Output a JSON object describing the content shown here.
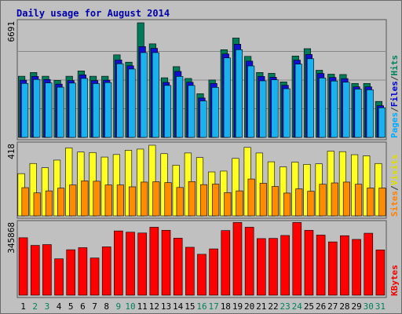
{
  "chart_data": {
    "type": "bar",
    "title": "Daily usage for August 2014",
    "days": [
      "1",
      "2",
      "3",
      "4",
      "5",
      "6",
      "7",
      "8",
      "9",
      "10",
      "11",
      "12",
      "13",
      "14",
      "15",
      "16",
      "17",
      "18",
      "19",
      "20",
      "21",
      "22",
      "23",
      "24",
      "25",
      "26",
      "27",
      "28",
      "29",
      "30",
      "31"
    ],
    "weekend_days": [
      "2",
      "3",
      "9",
      "10",
      "16",
      "17",
      "23",
      "24",
      "30",
      "31"
    ],
    "panels": [
      {
        "id": "hits",
        "max_label": "6691",
        "ymax": 6691,
        "right_labels": [
          {
            "text": "Pages",
            "color": "#00aaff"
          },
          {
            "text": "/",
            "color": "#333333"
          },
          {
            "text": "Files",
            "color": "#0000cc"
          },
          {
            "text": "/",
            "color": "#333333"
          },
          {
            "text": "Hits",
            "color": "#00805c"
          }
        ],
        "series": [
          {
            "name": "Hits",
            "color": "#007b5a",
            "values": [
              3570,
              3790,
              3570,
              3330,
              3570,
              3880,
              3570,
              3570,
              4820,
              4390,
              6691,
              5460,
              3480,
              4130,
              3440,
              2550,
              3350,
              5120,
              5800,
              4730,
              3790,
              3740,
              3240,
              4750,
              5180,
              3920,
              3690,
              3670,
              3150,
              3150,
              2100
            ]
          },
          {
            "name": "Files",
            "color": "#1010d0",
            "values": [
              3340,
              3560,
              3380,
              3110,
              3320,
              3650,
              3320,
              3340,
              4520,
              4180,
              5300,
              5200,
              3210,
              3850,
              3220,
              2300,
              3150,
              4870,
              5440,
              4450,
              3560,
              3510,
              3040,
              4510,
              4840,
              3730,
              3500,
              3430,
              2950,
              2950,
              1850
            ]
          },
          {
            "name": "Pages",
            "color": "#19b2ee",
            "values": [
              3150,
              3380,
              3180,
              2930,
              3170,
              3440,
              3140,
              3200,
              4300,
              3990,
              4950,
              4950,
              3030,
              3560,
              3030,
              2130,
              2920,
              4640,
              5120,
              4170,
              3300,
              3360,
              2840,
              4280,
              4590,
              3470,
              3290,
              3220,
              2820,
              2780,
              1730
            ]
          }
        ]
      },
      {
        "id": "visits",
        "max_label": "418",
        "ymax": 418,
        "right_labels": [
          {
            "text": "Sites",
            "color": "#ff8000"
          },
          {
            "text": "/",
            "color": "#333333"
          },
          {
            "text": "Visits",
            "color": "#dddd00"
          }
        ],
        "series": [
          {
            "name": "Visits",
            "color": "#ffff22",
            "values": [
              250,
              310,
              285,
              330,
              402,
              378,
              375,
              348,
              363,
              388,
              395,
              418,
              368,
              300,
              372,
              345,
              260,
              265,
              340,
              405,
              372,
              320,
              290,
              318,
              305,
              308,
              383,
              380,
              362,
              355,
              310
            ]
          },
          {
            "name": "Sites",
            "color": "#ff8c00",
            "values": [
              167,
              136,
              148,
              164,
              183,
              207,
              205,
              183,
              183,
              172,
              200,
              202,
              197,
              168,
              203,
              185,
              188,
              138,
              148,
              218,
              193,
              174,
              135,
              160,
              146,
              187,
              195,
              200,
              187,
              165,
              165
            ]
          }
        ]
      },
      {
        "id": "kbytes",
        "max_label": "345868",
        "ymax": 345868,
        "right_labels": [
          {
            "text": "KBytes",
            "color": "#ee0000"
          }
        ],
        "series": [
          {
            "name": "KBytes",
            "color": "#ff0000",
            "values": [
              278000,
              241000,
              245000,
              176000,
              220000,
              230000,
              180000,
              234000,
              311000,
              305000,
              301000,
              329000,
              314000,
              276000,
              232000,
              198000,
              224000,
              313000,
              352000,
              329000,
              274000,
              275000,
              289000,
              352000,
              314000,
              291000,
              258000,
              288000,
              270000,
              300000,
              219000
            ]
          }
        ]
      }
    ]
  }
}
